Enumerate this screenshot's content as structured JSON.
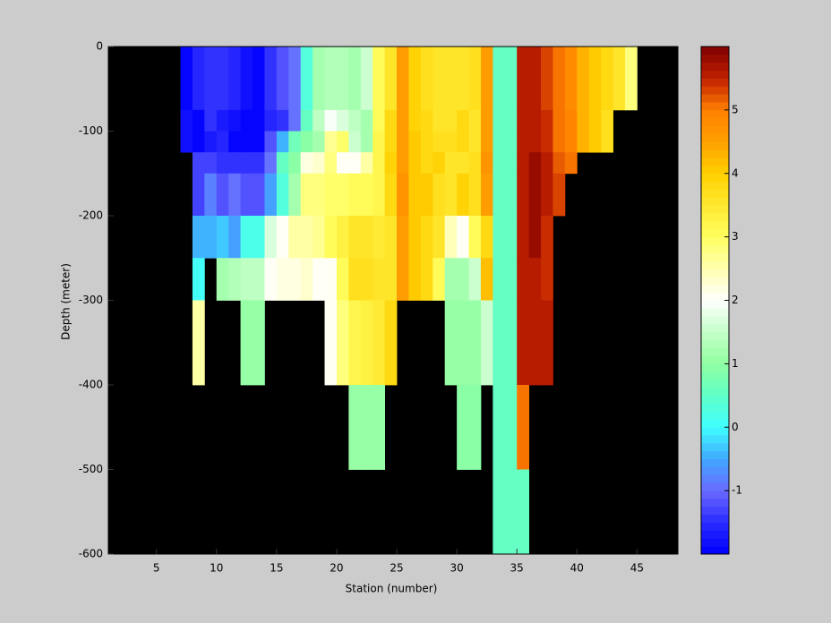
{
  "chart_data": {
    "type": "heatmap",
    "x_label": "Station (number)",
    "y_label": "Depth (meter)",
    "x": [
      7,
      8,
      9,
      10,
      11,
      12,
      13,
      14,
      15,
      16,
      17,
      18,
      19,
      20,
      21,
      22,
      23,
      24,
      25,
      26,
      27,
      28,
      29,
      30,
      31,
      32,
      33,
      34,
      35,
      36,
      37,
      38,
      39,
      40,
      41,
      42,
      43,
      44
    ],
    "depth_bins": [
      0,
      -75,
      -100,
      -125,
      -150,
      -200,
      -250,
      -300,
      -400,
      -500,
      -600
    ],
    "values": [
      [
        -1.9,
        -1.8,
        -1.8,
        null,
        null,
        null,
        null,
        null,
        null,
        null
      ],
      [
        -1.6,
        -1.9,
        -1.9,
        -1.3,
        -1.3,
        -0.5,
        0,
        2.5,
        null,
        null
      ],
      [
        -1.5,
        -1.5,
        -1.7,
        -1.3,
        -0.8,
        -0.5,
        null,
        null,
        null,
        null
      ],
      [
        -1.4,
        -1.7,
        -1.6,
        -1.4,
        -1.2,
        -0.3,
        1.2,
        null,
        null,
        null
      ],
      [
        -1.6,
        -1.8,
        -1.9,
        -1.5,
        -1,
        -0.6,
        1.3,
        null,
        null,
        null
      ],
      [
        -1.8,
        -1.9,
        -1.9,
        -1.5,
        -1.2,
        0.2,
        1.4,
        1,
        null,
        null
      ],
      [
        -1.9,
        -1.9,
        -1.9,
        -1.4,
        -1.2,
        0.2,
        1.4,
        1,
        null,
        null
      ],
      [
        -1.5,
        -1.6,
        -1.2,
        -1,
        -0.6,
        1.7,
        2,
        null,
        null,
        null
      ],
      [
        -1.2,
        -1.4,
        -0.5,
        0.6,
        0.3,
        2,
        2.2,
        null,
        null,
        null
      ],
      [
        -0.9,
        -0.9,
        0.7,
        0.9,
        1.2,
        2.5,
        2.2,
        null,
        null,
        null
      ],
      [
        0.3,
        0.5,
        0.9,
        2.2,
        2.8,
        2.6,
        2.3,
        null,
        null,
        null
      ],
      [
        1.2,
        1.4,
        1.2,
        2.3,
        2.8,
        2.7,
        2,
        null,
        null,
        null
      ],
      [
        1.3,
        1.9,
        2.7,
        2.8,
        2.9,
        3.1,
        2,
        2,
        null,
        null
      ],
      [
        1.3,
        1.7,
        2.9,
        2,
        2.9,
        3.3,
        3.1,
        2.8,
        null,
        null
      ],
      [
        1.2,
        1.4,
        1.6,
        2.1,
        3,
        3.6,
        3.7,
        3.2,
        1.1,
        null
      ],
      [
        1.5,
        1.2,
        1.2,
        2.6,
        3,
        3.6,
        3.7,
        3.3,
        1,
        null
      ],
      [
        3,
        3,
        3.2,
        3.2,
        3.2,
        3.4,
        3.5,
        3.4,
        1,
        null
      ],
      [
        3.5,
        3.8,
        3.8,
        3.9,
        3.8,
        3.6,
        3.6,
        3.8,
        null,
        null
      ],
      [
        4.5,
        4.6,
        4.6,
        4.6,
        4.7,
        4.5,
        4.5,
        null,
        null,
        null
      ],
      [
        3.9,
        3.9,
        4.1,
        4.1,
        4,
        4,
        4,
        null,
        null,
        null
      ],
      [
        3.7,
        3.8,
        3.8,
        3.8,
        4,
        3.8,
        3.8,
        null,
        null,
        null
      ],
      [
        3.6,
        3.6,
        3.7,
        3.9,
        3.7,
        3.5,
        3.1,
        null,
        null,
        null
      ],
      [
        3.5,
        3.6,
        3.7,
        3.6,
        3.6,
        2.4,
        1.2,
        1,
        null,
        null
      ],
      [
        3.5,
        3.8,
        3.8,
        3.6,
        3.9,
        2.1,
        1.2,
        1,
        0.9,
        null
      ],
      [
        3.7,
        3.6,
        3.6,
        3.7,
        3.7,
        3.1,
        1.5,
        1.1,
        0.9,
        null
      ],
      [
        4.5,
        4.5,
        4.5,
        4.7,
        4.6,
        3.8,
        4.2,
        1.6,
        null,
        null
      ],
      [
        0.6,
        0.6,
        0.6,
        0.6,
        0.6,
        0.6,
        0.6,
        0.6,
        0.6,
        0.6
      ],
      [
        0.6,
        0.6,
        0.6,
        0.6,
        0.6,
        0.6,
        0.6,
        0.6,
        0.6,
        0.6
      ],
      [
        5.6,
        5.6,
        5.6,
        5.6,
        5.6,
        5.6,
        5.6,
        5.6,
        5,
        0.6
      ],
      [
        5.5,
        5.5,
        5.6,
        5.8,
        5.8,
        5.8,
        5.6,
        5.6,
        null,
        null
      ],
      [
        5.3,
        5.4,
        5.4,
        5.5,
        5.5,
        5.4,
        5.4,
        5.5,
        null,
        null
      ],
      [
        5,
        5.1,
        5,
        5.2,
        5.3,
        null,
        null,
        null,
        null,
        null
      ],
      [
        4.8,
        4.9,
        4.9,
        5.1,
        null,
        null,
        null,
        null,
        null,
        null
      ],
      [
        4.3,
        4.3,
        4.3,
        null,
        null,
        null,
        null,
        null,
        null,
        null
      ],
      [
        4,
        4,
        4,
        null,
        null,
        null,
        null,
        null,
        null,
        null
      ],
      [
        3.8,
        3.7,
        3.7,
        null,
        null,
        null,
        null,
        null,
        null,
        null
      ],
      [
        3.6,
        null,
        null,
        null,
        null,
        null,
        null,
        null,
        null,
        null
      ],
      [
        2.8,
        null,
        null,
        null,
        null,
        null,
        null,
        null,
        null,
        null
      ]
    ],
    "xlim": [
      1,
      48.4
    ],
    "xticks": [
      5,
      10,
      15,
      20,
      25,
      30,
      35,
      40,
      45
    ],
    "ylim": [
      -600,
      0
    ],
    "yticks": [
      -600,
      -500,
      -400,
      -300,
      -200,
      -100,
      0
    ],
    "missing_color": "#000000",
    "clim": [
      -2,
      6
    ],
    "colorbar_ticks": [
      -1,
      0,
      1,
      2,
      3,
      4,
      5
    ],
    "colormap_levels": 64,
    "colormap": [
      {
        "value": -2,
        "color": "#0000ff"
      },
      {
        "value": -1.5,
        "color": "#2a2aff"
      },
      {
        "value": -1,
        "color": "#6a6aff"
      },
      {
        "value": -0.5,
        "color": "#40a8ff"
      },
      {
        "value": 0,
        "color": "#40ffff"
      },
      {
        "value": 0.5,
        "color": "#60ffc8"
      },
      {
        "value": 1,
        "color": "#90ffa0"
      },
      {
        "value": 1.5,
        "color": "#c4ffc8"
      },
      {
        "value": 2,
        "color": "#ffffff"
      },
      {
        "value": 2.5,
        "color": "#ffffb0"
      },
      {
        "value": 3,
        "color": "#ffff60"
      },
      {
        "value": 3.5,
        "color": "#ffe830"
      },
      {
        "value": 4,
        "color": "#ffd000"
      },
      {
        "value": 4.5,
        "color": "#ffa000"
      },
      {
        "value": 5,
        "color": "#ff8000"
      },
      {
        "value": 5.5,
        "color": "#c02000"
      },
      {
        "value": 6,
        "color": "#800000"
      }
    ]
  }
}
